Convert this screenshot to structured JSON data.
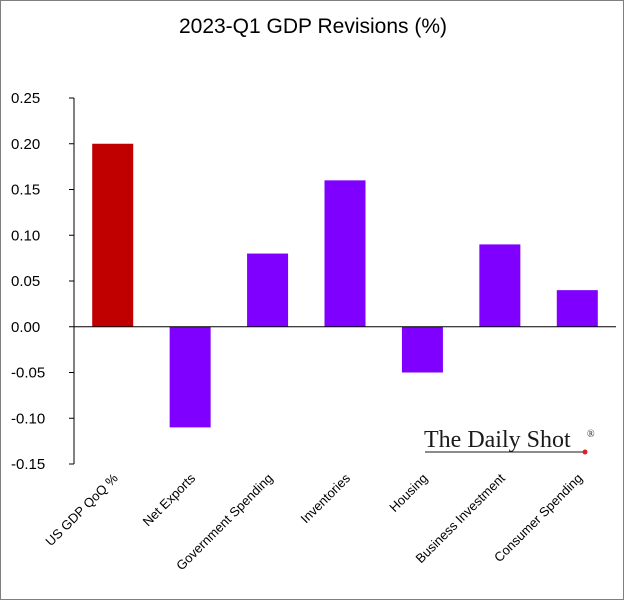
{
  "chart_data": {
    "type": "bar",
    "title": "2023-Q1 GDP Revisions (%)",
    "xlabel": "",
    "ylabel": "",
    "categories": [
      "US GDP QoQ %",
      "Net Exports",
      "Government Spending",
      "Inventories",
      "Housing",
      "Business Investment",
      "Consumer Spending"
    ],
    "values": [
      0.2,
      -0.11,
      0.08,
      0.16,
      -0.05,
      0.09,
      0.04
    ],
    "bar_colors": [
      "#c00000",
      "#7f00ff",
      "#7f00ff",
      "#7f00ff",
      "#7f00ff",
      "#7f00ff",
      "#7f00ff"
    ],
    "ylim": [
      -0.15,
      0.25
    ],
    "yticks": [
      "0.25",
      "0.20",
      "0.15",
      "0.10",
      "0.05",
      "0.00",
      "-0.05",
      "-0.10",
      "-0.15"
    ],
    "grid": false,
    "legend": "none"
  },
  "watermark": {
    "text": "The Daily Shot",
    "mark": "®",
    "dot_color": "#e02020"
  }
}
